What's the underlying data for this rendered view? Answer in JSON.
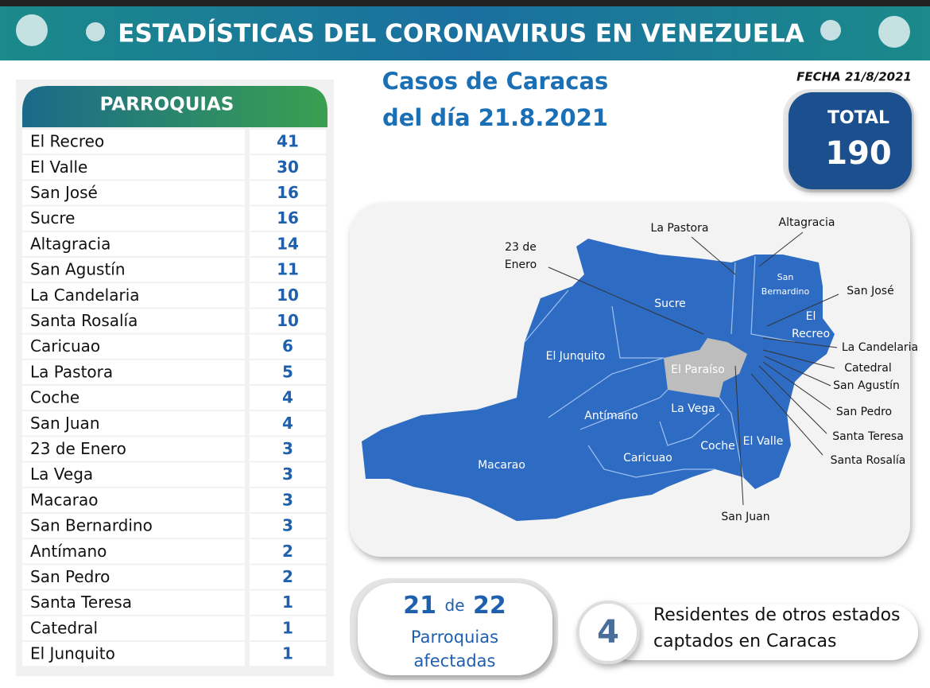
{
  "header": {
    "title": "ESTADÍSTICAS DEL CORONAVIRUS EN VENEZUELA"
  },
  "date": "FECHA 21/8/2021",
  "subtitle": [
    "Casos de Caracas",
    "del día 21.8.2021"
  ],
  "total": {
    "label": "TOTAL",
    "value": 190
  },
  "table": {
    "header": "PARROQUIAS",
    "rows": [
      [
        "El Recreo",
        41
      ],
      [
        "El Valle",
        30
      ],
      [
        "San José",
        16
      ],
      [
        "Sucre",
        16
      ],
      [
        "Altagracia",
        14
      ],
      [
        "San Agustín",
        11
      ],
      [
        "La Candelaria",
        10
      ],
      [
        "Santa Rosalía",
        10
      ],
      [
        "Caricuao",
        6
      ],
      [
        "La Pastora",
        5
      ],
      [
        "Coche",
        4
      ],
      [
        "San Juan",
        4
      ],
      [
        "23 de Enero",
        3
      ],
      [
        "La Vega",
        3
      ],
      [
        "Macarao",
        3
      ],
      [
        "San Bernardino",
        3
      ],
      [
        "Antímano",
        2
      ],
      [
        "San Pedro",
        2
      ],
      [
        "Santa Teresa",
        1
      ],
      [
        "Catedral",
        1
      ],
      [
        "El Junquito",
        1
      ]
    ]
  },
  "map": {
    "labels": [
      [
        "La Pastora"
      ],
      [
        "Altagracia"
      ],
      [
        "23 de",
        "Enero"
      ],
      [
        "San José"
      ],
      [
        "La Candelaria"
      ],
      [
        "Catedral"
      ],
      [
        "San Agustín"
      ],
      [
        "San Pedro"
      ],
      [
        "Santa Teresa"
      ],
      [
        "Santa Rosalía"
      ],
      [
        "San Juan"
      ],
      [
        "San",
        "Bernardino"
      ],
      [
        "El",
        "Recreo"
      ],
      [
        "Sucre"
      ],
      [
        "El Junquito"
      ],
      [
        "El Paraíso"
      ],
      [
        "Antímano"
      ],
      [
        "La Vega"
      ],
      [
        "Coche"
      ],
      [
        "El Valle"
      ],
      [
        "Caricuao"
      ],
      [
        "Macarao"
      ]
    ]
  },
  "affected": {
    "count": "21",
    "joiner": "de",
    "of": "22",
    "text": [
      "Parroquias",
      "afectadas"
    ]
  },
  "others": {
    "count": "4",
    "text": [
      "Residentes de otros estados",
      "captados en Caracas"
    ]
  }
}
